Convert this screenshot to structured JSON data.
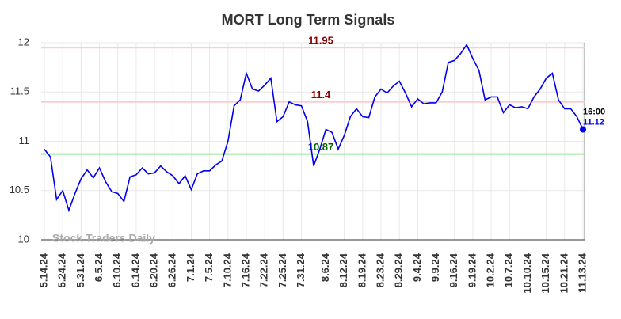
{
  "chart_data": {
    "type": "line",
    "title": "MORT Long Term Signals",
    "watermark": "Stock Traders Daily",
    "categories": [
      "5.14.24",
      null,
      null,
      "5.24.24",
      null,
      null,
      "5.31.24",
      null,
      null,
      "6.5.24",
      null,
      null,
      "6.10.24",
      null,
      null,
      "6.14.24",
      null,
      null,
      "6.20.24",
      null,
      null,
      "6.26.24",
      null,
      null,
      "7.1.24",
      null,
      null,
      "7.5.24",
      null,
      null,
      "7.10.24",
      null,
      null,
      "7.16.24",
      null,
      null,
      "7.22.24",
      null,
      null,
      "7.25.24",
      null,
      null,
      "7.31.24",
      null,
      null,
      null,
      "8.6.24",
      null,
      null,
      "8.12.24",
      null,
      null,
      "8.19.24",
      null,
      null,
      "8.23.24",
      null,
      null,
      "8.29.24",
      null,
      null,
      "9.4.24",
      null,
      null,
      "9.9.24",
      null,
      null,
      "9.16.24",
      null,
      null,
      "9.19.24",
      null,
      null,
      "10.2.24",
      null,
      null,
      "10.7.24",
      null,
      null,
      "10.10.24",
      null,
      null,
      "10.15.24",
      null,
      null,
      "10.21.24",
      null,
      null,
      "11.13.24"
    ],
    "series": [
      {
        "color": "#0000ee",
        "values": [
          10.92,
          10.84,
          10.41,
          10.5,
          10.3,
          10.47,
          10.62,
          10.71,
          10.63,
          10.73,
          10.59,
          10.49,
          10.47,
          10.39,
          10.64,
          10.66,
          10.73,
          10.67,
          10.68,
          10.75,
          10.69,
          10.65,
          10.57,
          10.65,
          10.51,
          10.67,
          10.7,
          10.7,
          10.76,
          10.8,
          11.0,
          11.36,
          11.42,
          11.69,
          11.53,
          11.51,
          11.57,
          11.64,
          11.2,
          11.25,
          11.4,
          11.37,
          11.36,
          11.2,
          10.75,
          10.92,
          11.12,
          11.09,
          10.92,
          11.06,
          11.25,
          11.33,
          11.25,
          11.24,
          11.45,
          11.53,
          11.49,
          11.56,
          11.61,
          11.49,
          11.35,
          11.43,
          11.38,
          11.39,
          11.39,
          11.5,
          11.8,
          11.82,
          11.89,
          11.98,
          11.84,
          11.72,
          11.42,
          11.45,
          11.45,
          11.29,
          11.37,
          11.34,
          11.35,
          11.33,
          11.45,
          11.53,
          11.64,
          11.69,
          11.42,
          11.33,
          11.33,
          11.25,
          11.12
        ]
      }
    ],
    "last_time": "16:00",
    "hlines": [
      {
        "value": 11.95,
        "color": "#8b0000",
        "line_color": "#ffcccc"
      },
      {
        "value": 11.4,
        "color": "#8b0000",
        "line_color": "#ffcccc"
      },
      {
        "value": 10.87,
        "color": "#006400",
        "line_color": "#99e699"
      }
    ],
    "ylim": [
      10,
      12
    ],
    "yticks": [
      10,
      10.5,
      11,
      11.5,
      12
    ],
    "grid": true
  }
}
